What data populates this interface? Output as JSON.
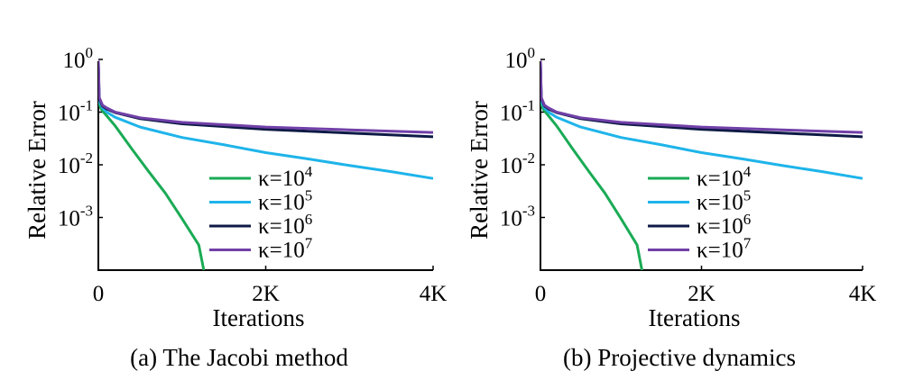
{
  "chart_data": [
    {
      "type": "line",
      "caption": "(a)  The Jacobi method",
      "xlabel": "Iterations",
      "ylabel": "Relative Error",
      "x_ticks": [
        {
          "value": 0,
          "label": "0"
        },
        {
          "value": 2000,
          "label": "2K"
        },
        {
          "value": 4000,
          "label": "4K"
        }
      ],
      "y_ticks": [
        {
          "value": 1,
          "base": "10",
          "exp": "0"
        },
        {
          "value": 0.1,
          "base": "10",
          "exp": "-1"
        },
        {
          "value": 0.01,
          "base": "10",
          "exp": "-2"
        },
        {
          "value": 0.001,
          "base": "10",
          "exp": "-3"
        }
      ],
      "xlim": [
        0,
        4000
      ],
      "ylim": [
        0.0001,
        1
      ],
      "yscale": "log",
      "legend_position": "lower-right",
      "series": [
        {
          "name": "κ=10^4",
          "label_base": "κ=10",
          "label_exp": "4",
          "color": "#1aab55",
          "x": [
            0,
            10,
            40,
            100,
            200,
            400,
            600,
            800,
            1000,
            1200,
            1260
          ],
          "y": [
            0.8,
            0.14,
            0.11,
            0.085,
            0.055,
            0.02,
            0.0075,
            0.0029,
            0.00095,
            0.0003,
            0.0001
          ]
        },
        {
          "name": "κ=10^5",
          "label_base": "κ=10",
          "label_exp": "5",
          "color": "#1eb4ea",
          "x": [
            0,
            10,
            50,
            100,
            200,
            500,
            1000,
            1500,
            2000,
            2500,
            3000,
            3500,
            4000
          ],
          "y": [
            0.85,
            0.16,
            0.12,
            0.1,
            0.08,
            0.052,
            0.033,
            0.024,
            0.017,
            0.013,
            0.0097,
            0.0074,
            0.0055
          ]
        },
        {
          "name": "κ=10^6",
          "label_base": "κ=10",
          "label_exp": "6",
          "color": "#0d1a45",
          "x": [
            0,
            10,
            50,
            100,
            200,
            500,
            1000,
            2000,
            3000,
            4000
          ],
          "y": [
            0.9,
            0.18,
            0.13,
            0.115,
            0.098,
            0.075,
            0.06,
            0.047,
            0.04,
            0.034
          ]
        },
        {
          "name": "κ=10^7",
          "label_base": "κ=10",
          "label_exp": "7",
          "color": "#7140a8",
          "x": [
            0,
            10,
            50,
            100,
            200,
            500,
            1000,
            2000,
            3000,
            4000
          ],
          "y": [
            0.95,
            0.19,
            0.135,
            0.12,
            0.1,
            0.078,
            0.064,
            0.052,
            0.046,
            0.041
          ]
        }
      ]
    },
    {
      "type": "line",
      "caption": "(b)  Projective dynamics",
      "xlabel": "Iterations",
      "ylabel": "Relative Error",
      "x_ticks": [
        {
          "value": 0,
          "label": "0"
        },
        {
          "value": 2000,
          "label": "2K"
        },
        {
          "value": 4000,
          "label": "4K"
        }
      ],
      "y_ticks": [
        {
          "value": 1,
          "base": "10",
          "exp": "0"
        },
        {
          "value": 0.1,
          "base": "10",
          "exp": "-1"
        },
        {
          "value": 0.01,
          "base": "10",
          "exp": "-2"
        },
        {
          "value": 0.001,
          "base": "10",
          "exp": "-3"
        }
      ],
      "xlim": [
        0,
        4000
      ],
      "ylim": [
        0.0001,
        1
      ],
      "yscale": "log",
      "legend_position": "lower-right",
      "series": [
        {
          "name": "κ=10^4",
          "label_base": "κ=10",
          "label_exp": "4",
          "color": "#1aab55",
          "x": [
            0,
            10,
            40,
            100,
            200,
            400,
            600,
            800,
            1000,
            1200,
            1260
          ],
          "y": [
            0.8,
            0.14,
            0.11,
            0.085,
            0.055,
            0.02,
            0.0075,
            0.0029,
            0.00095,
            0.0003,
            0.0001
          ]
        },
        {
          "name": "κ=10^5",
          "label_base": "κ=10",
          "label_exp": "5",
          "color": "#1eb4ea",
          "x": [
            0,
            10,
            50,
            100,
            200,
            500,
            1000,
            1500,
            2000,
            2500,
            3000,
            3500,
            4000
          ],
          "y": [
            0.85,
            0.16,
            0.12,
            0.1,
            0.08,
            0.052,
            0.033,
            0.024,
            0.017,
            0.013,
            0.0097,
            0.0074,
            0.0055
          ]
        },
        {
          "name": "κ=10^6",
          "label_base": "κ=10",
          "label_exp": "6",
          "color": "#0d1a45",
          "x": [
            0,
            10,
            50,
            100,
            200,
            500,
            1000,
            2000,
            3000,
            4000
          ],
          "y": [
            0.9,
            0.18,
            0.13,
            0.115,
            0.098,
            0.075,
            0.06,
            0.047,
            0.04,
            0.034
          ]
        },
        {
          "name": "κ=10^7",
          "label_base": "κ=10",
          "label_exp": "7",
          "color": "#7140a8",
          "x": [
            0,
            10,
            50,
            100,
            200,
            500,
            1000,
            2000,
            3000,
            4000
          ],
          "y": [
            0.95,
            0.19,
            0.135,
            0.12,
            0.1,
            0.078,
            0.064,
            0.052,
            0.046,
            0.041
          ]
        }
      ]
    }
  ]
}
